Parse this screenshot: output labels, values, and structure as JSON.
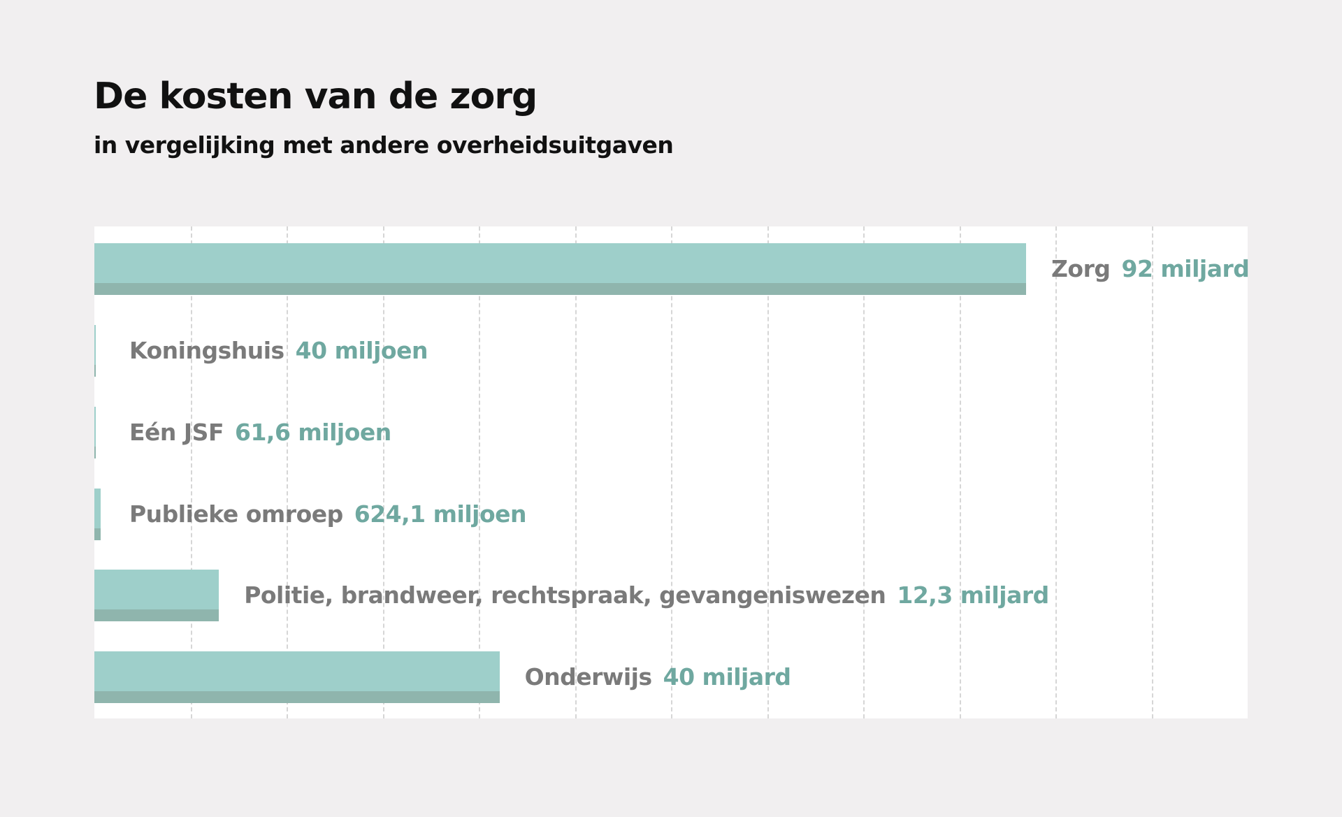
{
  "title": "De kosten van de zorg",
  "subtitle": "in vergelijking met andere overheidsuitgaven",
  "colors": {
    "background": "#f1eff0",
    "bar": "#9ecfca",
    "bar_shade": "#8fb5ad",
    "category_text": "#7a7a7a",
    "value_text": "#6fa8a0"
  },
  "chart_data": {
    "type": "bar",
    "orientation": "horizontal",
    "title": "De kosten van de zorg",
    "subtitle": "in vergelijking met andere overheidsuitgaven",
    "unit": "miljard euro",
    "grid": true,
    "categories": [
      "Zorg",
      "Koningshuis",
      "Eén JSF",
      "Publieke omroep",
      "Politie, brandweer, rechtspraak, gevangeniswezen",
      "Onderwijs"
    ],
    "values": [
      92,
      0.04,
      0.0616,
      0.6241,
      12.3,
      40
    ],
    "value_labels": [
      "92 miljard",
      "40 miljoen",
      "61,6 miljoen",
      "624,1 miljoen",
      "12,3 miljard",
      "40 miljard"
    ]
  }
}
